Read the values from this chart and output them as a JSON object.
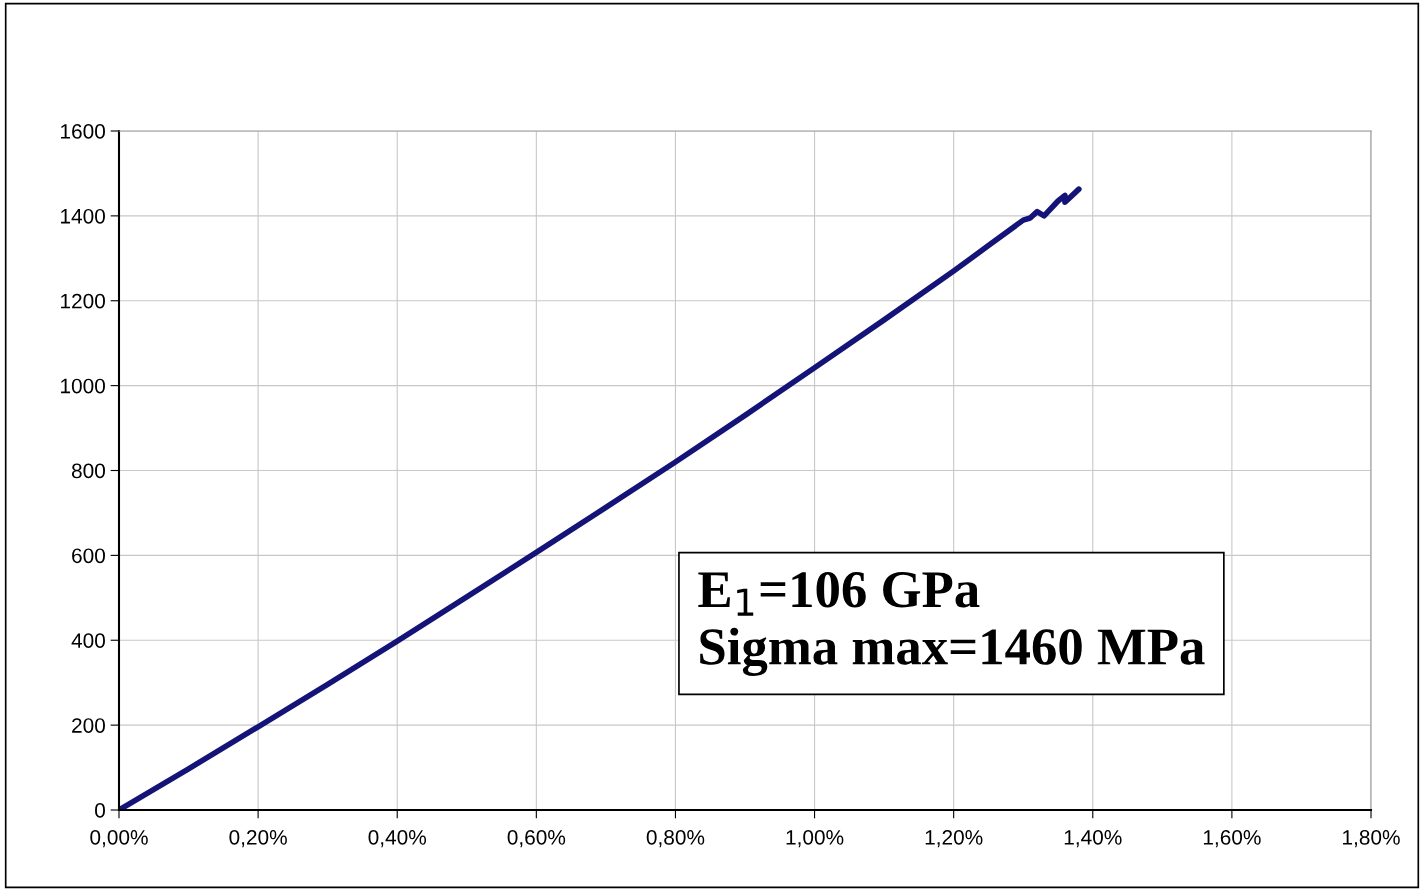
{
  "chart_data": {
    "type": "line",
    "x": [
      0,
      0.1,
      0.2,
      0.3,
      0.4,
      0.5,
      0.6,
      0.7,
      0.8,
      0.9,
      1.0,
      1.1,
      1.2,
      1.25,
      1.3,
      1.31,
      1.32,
      1.33,
      1.35,
      1.36,
      1.36,
      1.38
    ],
    "series": [
      {
        "color": "#141478",
        "values": [
          0,
          97,
          196,
          296,
          398,
          502,
          607,
          713,
          820,
          930,
          1042,
          1155,
          1270,
          1330,
          1390,
          1395,
          1410,
          1400,
          1435,
          1448,
          1432,
          1463
        ]
      }
    ],
    "xlim": [
      0,
      1.8
    ],
    "xticks": [
      {
        "value": 0,
        "label": "0,00%"
      },
      {
        "value": 0.2,
        "label": "0,20%"
      },
      {
        "value": 0.4,
        "label": "0,40%"
      },
      {
        "value": 0.6,
        "label": "0,60%"
      },
      {
        "value": 0.8,
        "label": "0,80%"
      },
      {
        "value": 1.0,
        "label": "1,00%"
      },
      {
        "value": 1.2,
        "label": "1,20%"
      },
      {
        "value": 1.4,
        "label": "1,40%"
      },
      {
        "value": 1.6,
        "label": "1,60%"
      },
      {
        "value": 1.8,
        "label": "1,80%"
      }
    ],
    "ylim": [
      0,
      1600
    ],
    "yticks": [
      0,
      200,
      400,
      600,
      800,
      1000,
      1200,
      1400,
      1600
    ],
    "grid": true,
    "marker": "none",
    "line_style": "solid",
    "annotations": [
      "E$_{1}$=106 GPa\nSigma max=1460 MPa"
    ]
  }
}
